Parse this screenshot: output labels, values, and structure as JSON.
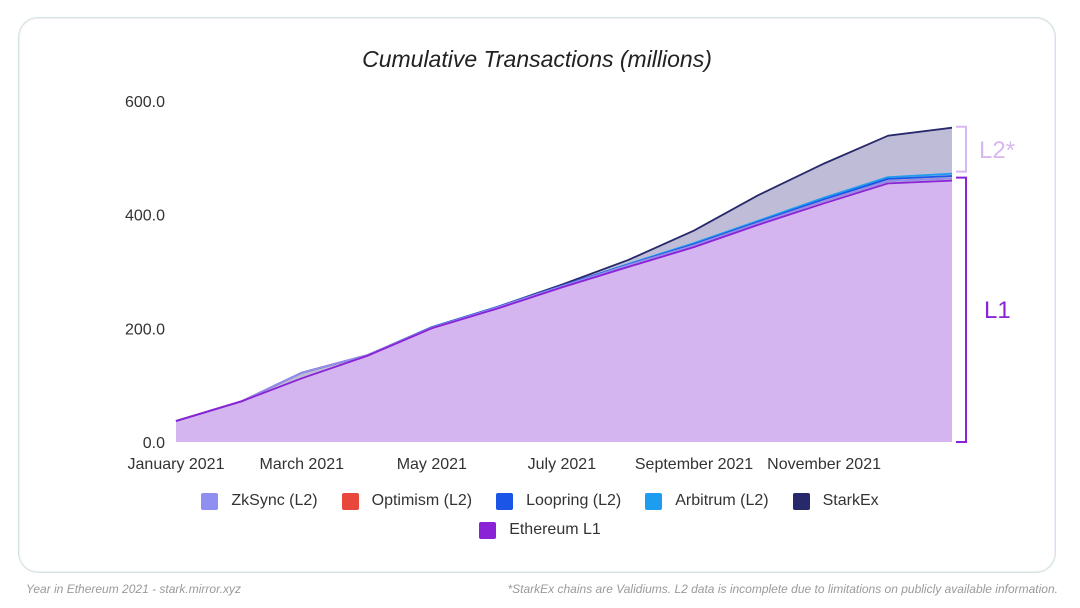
{
  "colors": {
    "zksync": "#8f8ff2",
    "optimism": "#e8483c",
    "loopring": "#1a55e8",
    "arbitrum": "#1e9cf0",
    "starkex": "#27296a",
    "ethereum": "#8a22d6",
    "ethereum_fill": "#d5b5f0",
    "l2_fill": "#bfbcd8",
    "l2_bracket": "#d8b8f0"
  },
  "annotations": {
    "l2": "L2*",
    "l1": "L1"
  },
  "footer": {
    "left": "Year in Ethereum 2021 - stark.mirror.xyz",
    "right": "*StarkEx chains are Validiums. L2 data is incomplete due to limitations on publicly available information."
  },
  "chart_data": {
    "type": "area",
    "title": "Cumulative Transactions (millions)",
    "xlabel": "",
    "ylabel": "",
    "ylim": [
      0,
      600
    ],
    "yticks": [
      "600.0",
      "400.0",
      "200.0",
      "0.0"
    ],
    "ytick_values": [
      600,
      400,
      200,
      0
    ],
    "xticks": [
      "January 2021",
      "March 2021",
      "May 2021",
      "July 2021",
      "September 2021",
      "November 2021"
    ],
    "x": [
      "2021-01-01",
      "2021-02-01",
      "2021-03-01",
      "2021-04-01",
      "2021-05-01",
      "2021-06-01",
      "2021-07-01",
      "2021-08-01",
      "2021-09-01",
      "2021-10-01",
      "2021-11-01",
      "2021-12-01",
      "2021-12-31"
    ],
    "stacked": true,
    "legend_position": "bottom",
    "series": [
      {
        "name": "Ethereum L1",
        "key": "ethereum",
        "values": [
          37,
          72,
          112,
          152,
          200,
          235,
          272,
          308,
          343,
          382,
          420,
          455,
          460
        ]
      },
      {
        "name": "ZkSync (L2)",
        "key": "zksync",
        "values": [
          0,
          0,
          10,
          1,
          1,
          2,
          2,
          3,
          3,
          3,
          4,
          4,
          4
        ]
      },
      {
        "name": "Optimism (L2)",
        "key": "optimism",
        "values": [
          0,
          0,
          0,
          0,
          0,
          0,
          0,
          0,
          0,
          0,
          0,
          0,
          0
        ]
      },
      {
        "name": "Loopring (L2)",
        "key": "loopring",
        "values": [
          0,
          0,
          0,
          0,
          1,
          1,
          1,
          1,
          2,
          2,
          3,
          4,
          4
        ]
      },
      {
        "name": "Arbitrum (L2)",
        "key": "arbitrum",
        "values": [
          0,
          0,
          0,
          0,
          0,
          0,
          0,
          1,
          2,
          2,
          3,
          3,
          4
        ]
      },
      {
        "name": "StarkEx",
        "key": "starkex",
        "values": [
          0,
          0,
          0,
          0,
          0,
          0,
          2,
          7,
          22,
          45,
          60,
          73,
          81
        ]
      }
    ],
    "legend": [
      "ZkSync (L2)",
      "Optimism (L2)",
      "Loopring (L2)",
      "Arbitrum (L2)",
      "StarkEx",
      "Ethereum L1"
    ]
  }
}
